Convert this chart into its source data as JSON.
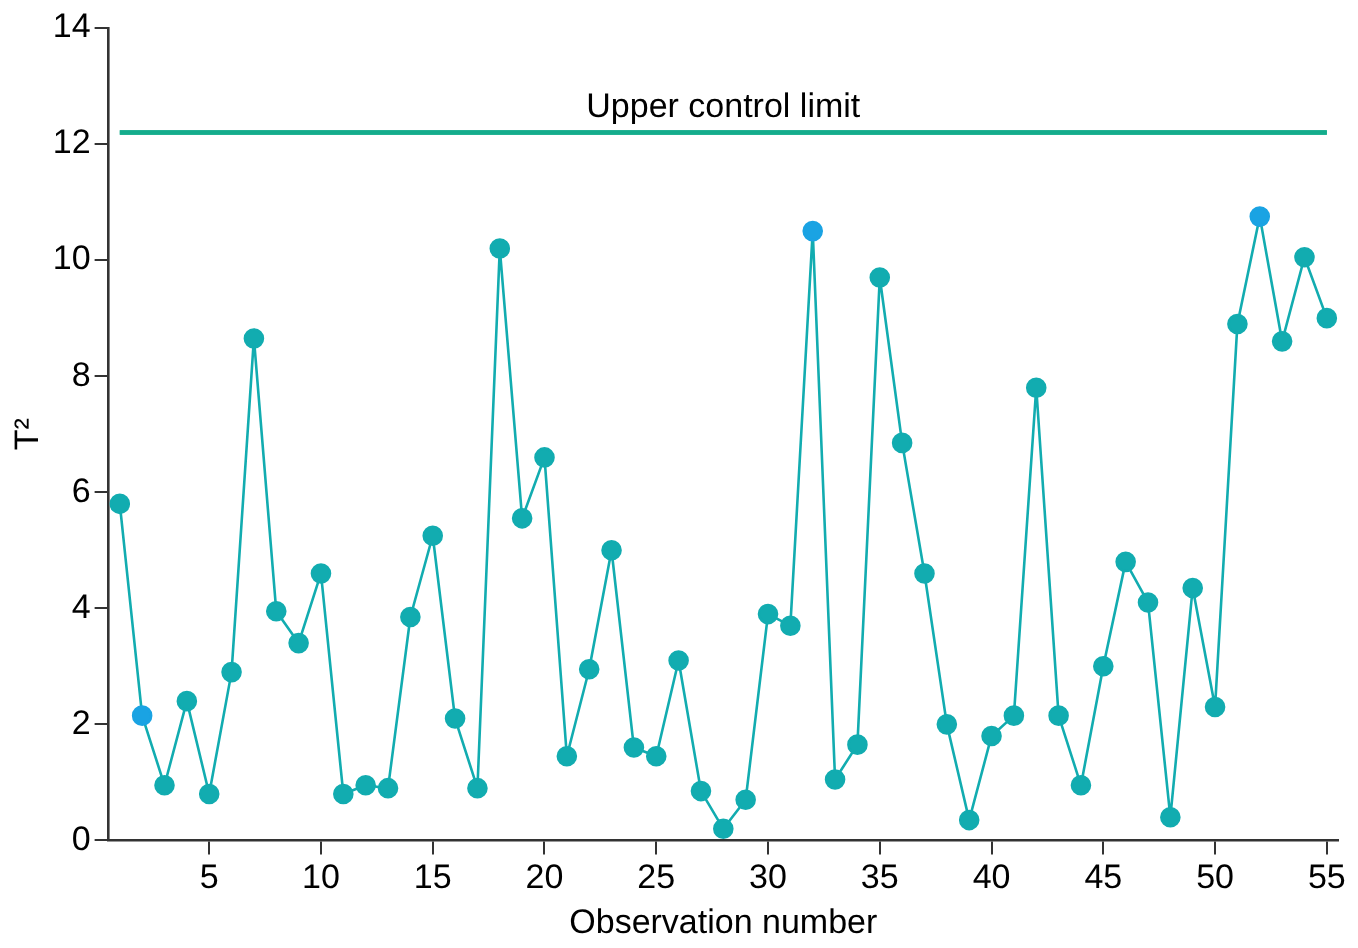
{
  "chart_data": {
    "type": "line",
    "xlabel": "Observation number",
    "ylabel": "T²",
    "x": [
      1,
      2,
      3,
      4,
      5,
      6,
      7,
      8,
      9,
      10,
      11,
      12,
      13,
      14,
      15,
      16,
      17,
      18,
      19,
      20,
      21,
      22,
      23,
      24,
      25,
      26,
      27,
      28,
      29,
      30,
      31,
      32,
      33,
      34,
      35,
      36,
      37,
      38,
      39,
      40,
      41,
      42,
      43,
      44,
      45,
      46,
      47,
      48,
      49,
      50,
      51,
      52,
      53,
      54,
      55
    ],
    "series": [
      {
        "color": "#12acb0",
        "colors": [
          "#12acb0",
          "#1aa3e3",
          "#12acb0",
          "#12acb0",
          "#12acb0",
          "#12acb0",
          "#12acb0",
          "#12acb0",
          "#12acb0",
          "#12acb0",
          "#12acb0",
          "#12acb0",
          "#12acb0",
          "#12acb0",
          "#12acb0",
          "#12acb0",
          "#12acb0",
          "#12acb0",
          "#12acb0",
          "#12acb0",
          "#12acb0",
          "#12acb0",
          "#12acb0",
          "#12acb0",
          "#12acb0",
          "#12acb0",
          "#12acb0",
          "#12acb0",
          "#12acb0",
          "#12acb0",
          "#12acb0",
          "#1aa3e3",
          "#12acb0",
          "#12acb0",
          "#12acb0",
          "#12acb0",
          "#12acb0",
          "#12acb0",
          "#12acb0",
          "#12acb0",
          "#12acb0",
          "#12acb0",
          "#12acb0",
          "#12acb0",
          "#12acb0",
          "#12acb0",
          "#12acb0",
          "#12acb0",
          "#12acb0",
          "#12acb0",
          "#12acb0",
          "#1aa3e3",
          "#12acb0",
          "#12acb0",
          "#12acb0"
        ],
        "values": [
          5.8,
          2.15,
          0.95,
          2.4,
          0.8,
          2.9,
          8.65,
          3.95,
          3.4,
          4.6,
          0.8,
          0.95,
          0.9,
          3.85,
          5.25,
          2.1,
          0.9,
          10.2,
          5.55,
          6.6,
          1.45,
          2.95,
          5.0,
          1.6,
          1.45,
          3.1,
          0.85,
          0.2,
          0.7,
          3.9,
          3.7,
          10.5,
          1.05,
          1.65,
          9.7,
          6.85,
          4.6,
          2.0,
          0.35,
          1.8,
          2.15,
          7.8,
          2.15,
          0.95,
          3.0,
          4.8,
          4.1,
          0.4,
          4.35,
          2.3,
          8.9,
          10.75,
          8.6,
          10.05,
          9.0
        ]
      }
    ],
    "xlim": [
      0.5,
      55.5
    ],
    "xticks": [
      5,
      10,
      15,
      20,
      25,
      30,
      35,
      40,
      45,
      50,
      55
    ],
    "ylim": [
      0,
      14
    ],
    "yticks": [
      0,
      2,
      4,
      6,
      8,
      10,
      12,
      14
    ],
    "ref_lines": [
      {
        "axis": "y",
        "value": 12.2,
        "label": "Upper control limit",
        "color": "#14ac8c"
      }
    ],
    "grid": false,
    "legend": false,
    "marker": "circle",
    "line_style": "solid"
  }
}
